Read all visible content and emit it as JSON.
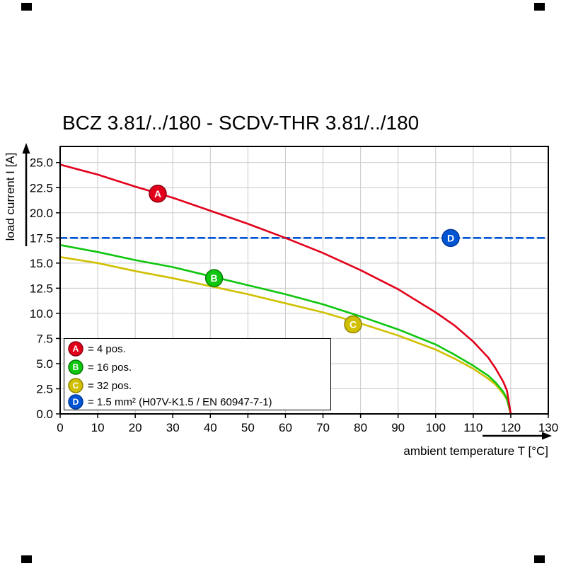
{
  "title": "BCZ 3.81/../180 - SCDV-THR 3.81/../180",
  "chart_data": {
    "type": "line",
    "title": "BCZ 3.81/../180 - SCDV-THR 3.81/../180",
    "xlabel": "ambient temperature T [°C]",
    "ylabel": "load current I [A]",
    "xlim": [
      0,
      130
    ],
    "ylim": [
      0,
      26.6
    ],
    "grid": true,
    "legend_position": "lower-left-inside",
    "x_ticks": [
      "0",
      "10",
      "20",
      "30",
      "40",
      "50",
      "60",
      "70",
      "80",
      "90",
      "100",
      "110",
      "120",
      "130"
    ],
    "y_ticks": [
      "0.0",
      "2.5",
      "5.0",
      "7.5",
      "10.0",
      "12.5",
      "15.0",
      "17.5",
      "20.0",
      "22.5",
      "25.0"
    ],
    "series": [
      {
        "name": "A",
        "legend_label": "= 4 pos.",
        "color": "#e2001a",
        "edge_color": "#8e0010",
        "marker_at": [
          26,
          21.9
        ],
        "points": [
          [
            0,
            24.8
          ],
          [
            10,
            23.8
          ],
          [
            20,
            22.6
          ],
          [
            30,
            21.5
          ],
          [
            40,
            20.2
          ],
          [
            50,
            18.9
          ],
          [
            60,
            17.5
          ],
          [
            70,
            16.0
          ],
          [
            80,
            14.3
          ],
          [
            90,
            12.4
          ],
          [
            100,
            10.1
          ],
          [
            105,
            8.8
          ],
          [
            110,
            7.2
          ],
          [
            112,
            6.4
          ],
          [
            114,
            5.6
          ],
          [
            116,
            4.5
          ],
          [
            118,
            3.2
          ],
          [
            119,
            2.3
          ],
          [
            120,
            0.0
          ]
        ]
      },
      {
        "name": "B",
        "legend_label": "= 16 pos.",
        "color": "#0fc60f",
        "edge_color": "#0a7a0a",
        "marker_at": [
          41,
          13.5
        ],
        "points": [
          [
            0,
            16.8
          ],
          [
            10,
            16.1
          ],
          [
            20,
            15.3
          ],
          [
            30,
            14.6
          ],
          [
            40,
            13.7
          ],
          [
            50,
            12.8
          ],
          [
            60,
            11.9
          ],
          [
            70,
            10.9
          ],
          [
            80,
            9.7
          ],
          [
            90,
            8.4
          ],
          [
            100,
            6.9
          ],
          [
            105,
            5.9
          ],
          [
            110,
            4.8
          ],
          [
            112,
            4.3
          ],
          [
            114,
            3.8
          ],
          [
            116,
            3.1
          ],
          [
            118,
            2.2
          ],
          [
            119,
            1.5
          ],
          [
            120,
            0.0
          ]
        ]
      },
      {
        "name": "C",
        "legend_label": "= 32 pos.",
        "color": "#d0c000",
        "edge_color": "#8f8500",
        "marker_at": [
          78,
          8.9
        ],
        "points": [
          [
            0,
            15.6
          ],
          [
            10,
            15.0
          ],
          [
            20,
            14.2
          ],
          [
            30,
            13.5
          ],
          [
            40,
            12.7
          ],
          [
            50,
            11.9
          ],
          [
            60,
            11.0
          ],
          [
            70,
            10.1
          ],
          [
            80,
            9.0
          ],
          [
            90,
            7.8
          ],
          [
            100,
            6.4
          ],
          [
            105,
            5.5
          ],
          [
            110,
            4.5
          ],
          [
            112,
            4.0
          ],
          [
            114,
            3.5
          ],
          [
            116,
            2.9
          ],
          [
            118,
            2.0
          ],
          [
            119,
            1.4
          ],
          [
            120,
            0.0
          ]
        ]
      },
      {
        "name": "D",
        "legend_label": "= 1.5 mm² (H07V-K1.5 / EN 60947-7-1)",
        "color": "#0055d4",
        "edge_color": "#003a9c",
        "hline_y": 17.5,
        "dashed": true,
        "marker_at": [
          104,
          17.5
        ]
      }
    ],
    "grid_color": "#c9c9c9",
    "axis_color": "#000000"
  }
}
